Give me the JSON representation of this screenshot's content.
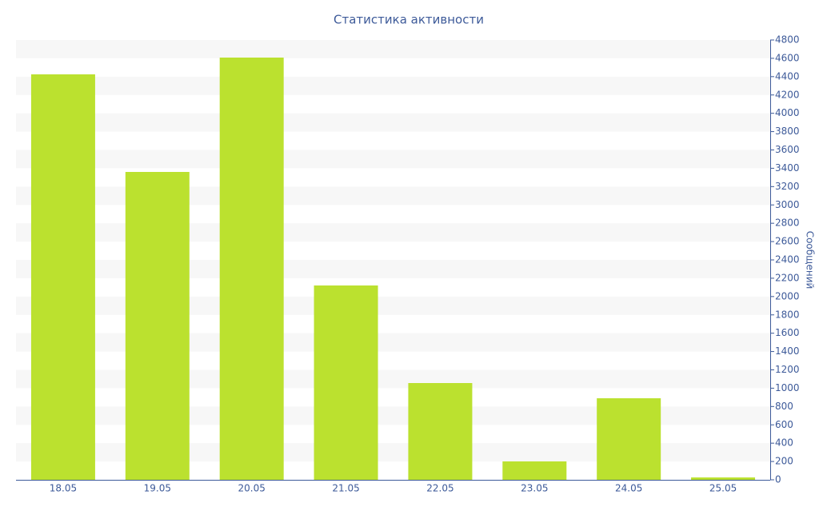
{
  "chart_data": {
    "type": "bar",
    "title": "Статистика активности",
    "y_label": "Сообщений",
    "categories": [
      "18.05",
      "19.05",
      "20.05",
      "21.05",
      "22.05",
      "23.05",
      "24.05",
      "25.05"
    ],
    "values": [
      4425,
      3360,
      4608,
      2121,
      1056,
      201,
      890,
      26
    ],
    "color": "#bbe12f",
    "ylim": [
      0,
      4800
    ],
    "yticks": [
      0,
      200,
      400,
      600,
      800,
      1000,
      1200,
      1400,
      1600,
      1800,
      2000,
      2200,
      2400,
      2600,
      2800,
      3000,
      3200,
      3400,
      3600,
      3800,
      4000,
      4200,
      4400,
      4600,
      4800
    ],
    "grid": true
  }
}
